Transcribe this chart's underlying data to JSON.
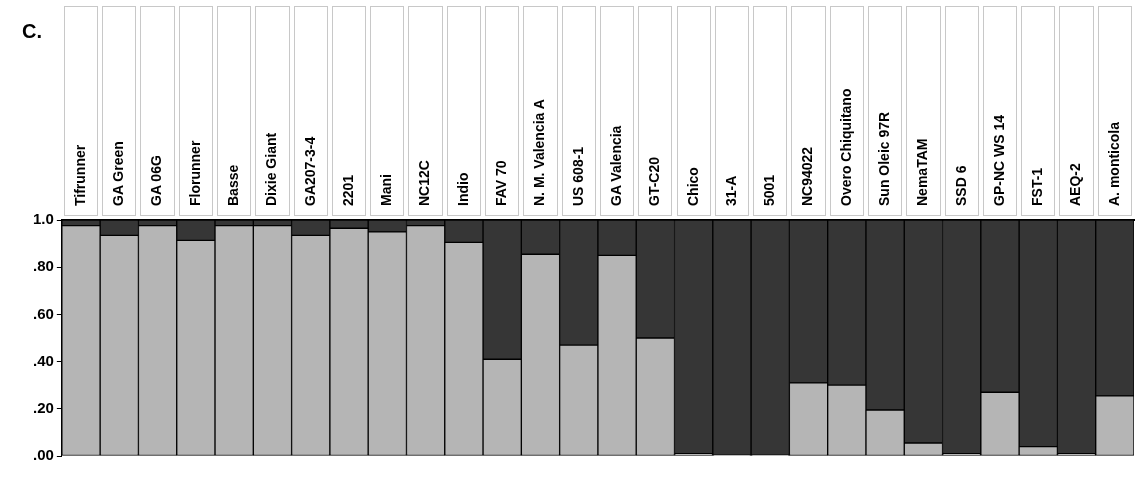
{
  "chart_data": {
    "type": "bar",
    "title": "C.",
    "stacked": true,
    "grid": false,
    "legend": false,
    "categories": [
      "Tifrunner",
      "GA Green",
      "GA 06G",
      "Florunner",
      "Basse",
      "Dixie Giant",
      "GA207-3-4",
      "2201",
      "Mani",
      "NC12C",
      "Indio",
      "FAV 70",
      "N. M. Valencia A",
      "US 608-1",
      "GA Valencia",
      "GT-C20",
      "Chico",
      "31-A",
      "5001",
      "NC94022",
      "Overo Chiquitano",
      "Sun Oleic 97R",
      "NemaTAM",
      "SSD 6",
      "GP-NC WS 14",
      "FST-1",
      "AEQ-2",
      "A. monticola"
    ],
    "series": [
      {
        "color": "#b5b5b5",
        "values": [
          0.976,
          0.935,
          0.976,
          0.914,
          0.976,
          0.976,
          0.935,
          0.965,
          0.95,
          0.976,
          0.905,
          0.41,
          0.855,
          0.47,
          0.85,
          0.5,
          0.01,
          0.005,
          0.005,
          0.31,
          0.3,
          0.195,
          0.055,
          0.01,
          0.27,
          0.04,
          0.01,
          0.255
        ]
      },
      {
        "color": "#363636",
        "values": [
          0.024,
          0.065,
          0.024,
          0.086,
          0.024,
          0.024,
          0.065,
          0.035,
          0.05,
          0.024,
          0.095,
          0.59,
          0.145,
          0.53,
          0.15,
          0.5,
          0.99,
          0.995,
          0.995,
          0.69,
          0.7,
          0.805,
          0.945,
          0.99,
          0.73,
          0.96,
          0.99,
          0.745
        ]
      }
    ],
    "ylim": [
      0,
      1
    ],
    "yticks": [
      {
        "value": 1,
        "label": "1.0"
      },
      {
        "value": 0.8,
        "label": ".80"
      },
      {
        "value": 0.6,
        "label": ".60"
      },
      {
        "value": 0.4,
        "label": ".40"
      },
      {
        "value": 0.2,
        "label": ".20"
      },
      {
        "value": 0,
        "label": ".00"
      }
    ]
  }
}
